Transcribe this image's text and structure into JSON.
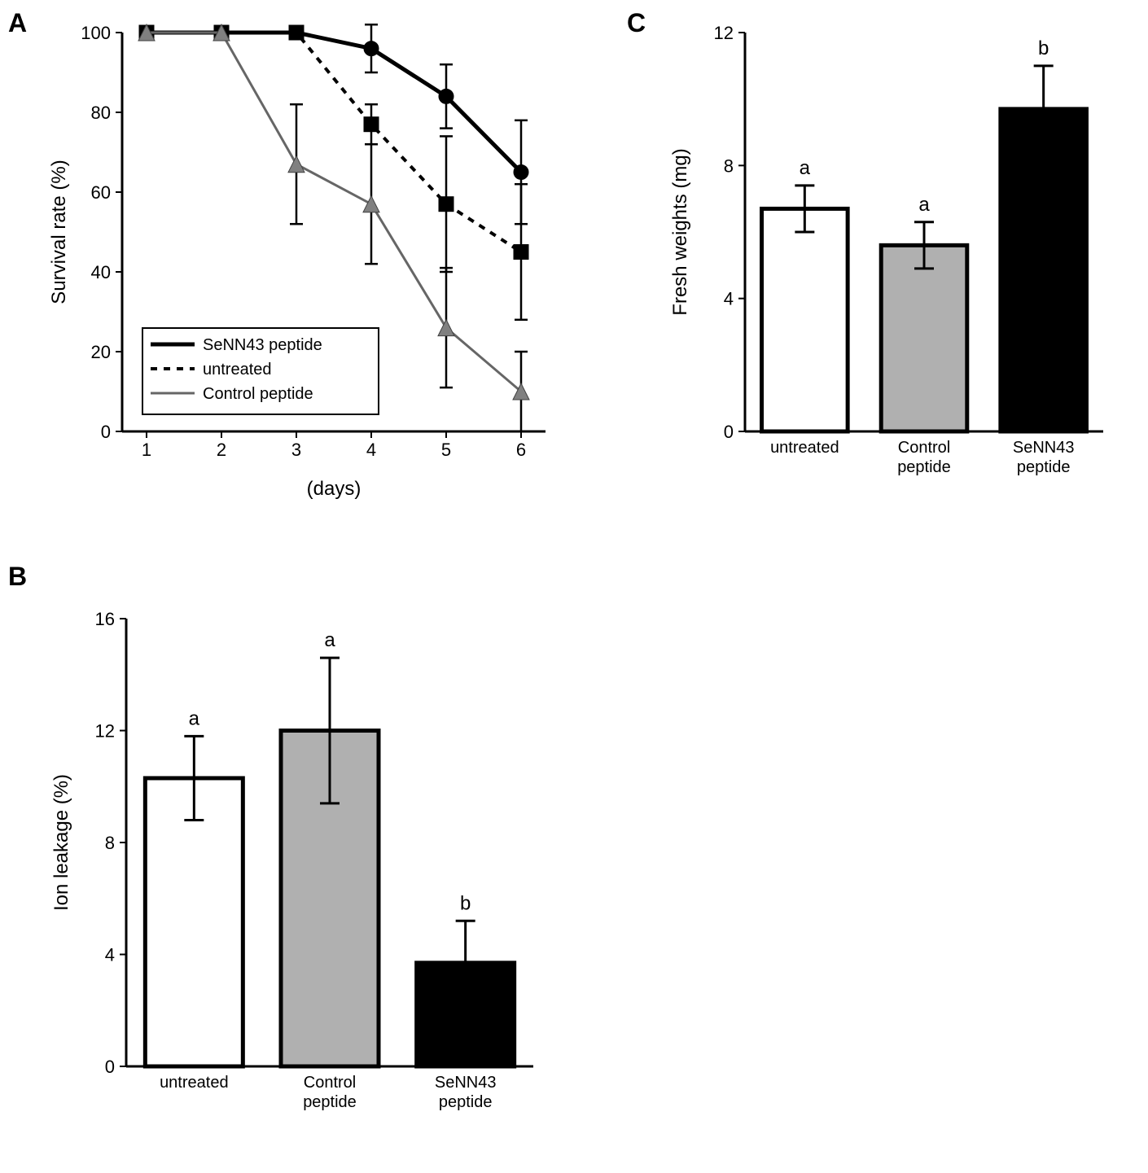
{
  "panels": {
    "A": {
      "label": "A"
    },
    "B": {
      "label": "B"
    },
    "C": {
      "label": "C"
    }
  },
  "chartA": {
    "type": "line",
    "x": [
      1,
      2,
      3,
      4,
      5,
      6
    ],
    "xlabel": "(days)",
    "ylabel": "Survival rate (%)",
    "ylim": [
      0,
      100
    ],
    "ytick_step": 20,
    "axis_fontsize": 24,
    "tick_fontsize": 22,
    "series": [
      {
        "name": "SeNN43 peptide",
        "values": [
          100,
          100,
          100,
          96,
          84,
          65
        ],
        "err": [
          0,
          0,
          0,
          6,
          8,
          13
        ],
        "color": "#000000",
        "line_width": 5,
        "marker": "circle",
        "marker_size": 9,
        "dash": "none"
      },
      {
        "name": "untreated",
        "values": [
          100,
          100,
          100,
          77,
          57,
          45
        ],
        "err": [
          0,
          0,
          0,
          5,
          17,
          17
        ],
        "color": "#000000",
        "line_width": 4,
        "marker": "square",
        "marker_size": 9,
        "dash": "8,8"
      },
      {
        "name": "Control peptide",
        "values": [
          100,
          100,
          67,
          57,
          26,
          10
        ],
        "err": [
          0,
          0,
          15,
          15,
          15,
          10
        ],
        "color": "#666666",
        "line_width": 3,
        "marker": "triangle",
        "marker_size": 10,
        "dash": "none"
      }
    ],
    "legend": {
      "entries": [
        "SeNN43 peptide",
        "untreated",
        "Control peptide"
      ],
      "fontsize": 20
    },
    "background": "#ffffff",
    "axis_color": "#000000"
  },
  "chartB": {
    "type": "bar",
    "categories": [
      "untreated",
      "Control\npeptide",
      "SeNN43\npeptide"
    ],
    "values": [
      10.3,
      12.0,
      3.7
    ],
    "err": [
      1.5,
      2.6,
      1.5
    ],
    "annot": [
      "a",
      "a",
      "b"
    ],
    "bar_colors": [
      "#ffffff",
      "#b0b0b0",
      "#000000"
    ],
    "bar_border": "#000000",
    "bar_border_width": 5,
    "ylabel": "Ion leakage (%)",
    "ylim": [
      0,
      16
    ],
    "ytick_step": 4,
    "axis_fontsize": 24,
    "tick_fontsize": 22,
    "cat_fontsize": 20,
    "annot_fontsize": 24,
    "bar_width": 0.72,
    "background": "#ffffff"
  },
  "chartC": {
    "type": "bar",
    "categories": [
      "untreated",
      "Control\npeptide",
      "SeNN43\npeptide"
    ],
    "values": [
      6.7,
      5.6,
      9.7
    ],
    "err": [
      0.7,
      0.7,
      1.3
    ],
    "annot": [
      "a",
      "a",
      "b"
    ],
    "bar_colors": [
      "#ffffff",
      "#b0b0b0",
      "#000000"
    ],
    "bar_border": "#000000",
    "bar_border_width": 5,
    "ylabel": "Fresh weights (mg)",
    "ylim": [
      0,
      12
    ],
    "ytick_step": 4,
    "axis_fontsize": 24,
    "tick_fontsize": 22,
    "cat_fontsize": 20,
    "annot_fontsize": 24,
    "bar_width": 0.72,
    "background": "#ffffff"
  }
}
